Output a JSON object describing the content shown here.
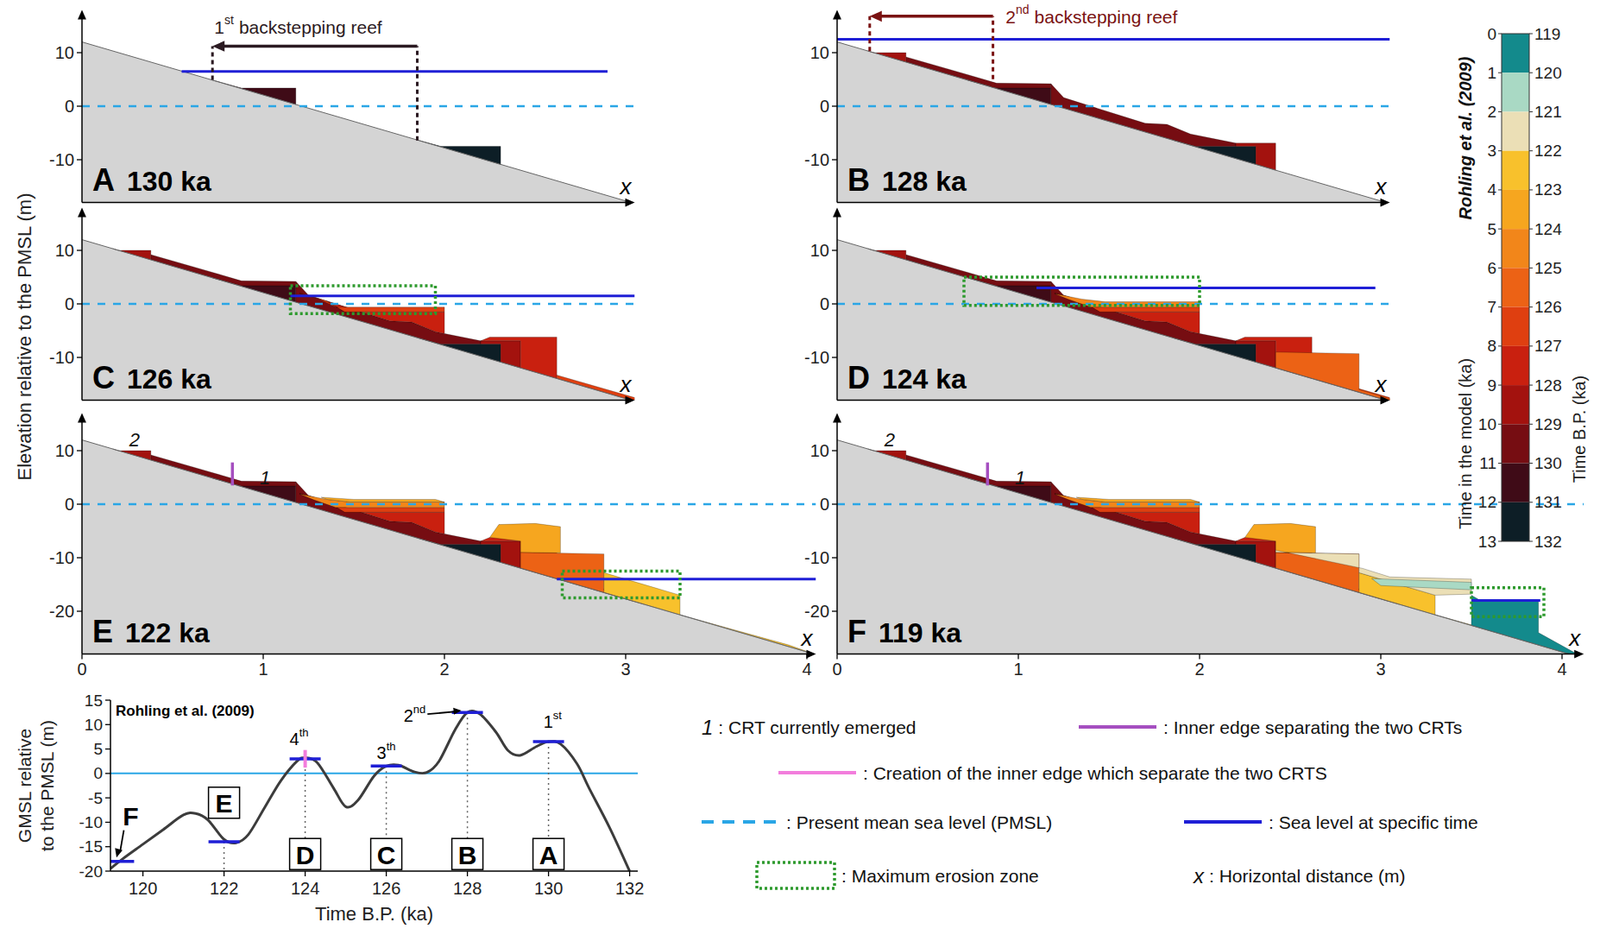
{
  "figure_ylabel": "Elevation relative to the PMSL (m)",
  "chart_data": [
    {
      "type": "section",
      "panel": "A",
      "title": "130 ka",
      "time": 130,
      "xlim": [
        0,
        3.05
      ],
      "ylim": [
        -18,
        18
      ],
      "yticks": [
        -10,
        0,
        10
      ],
      "tick_labels": "y",
      "xlabel": "x",
      "pmsl": 0,
      "bedrock": {
        "x": [
          0,
          3.03
        ],
        "y": [
          12,
          -18
        ]
      },
      "sea_level": {
        "value": 6.5,
        "x": [
          0.55,
          2.9
        ]
      },
      "annotation": {
        "ordinal": "1",
        "suffix": "st",
        "text": "backstepping reef",
        "from_x": 1.85,
        "to_x": 0.72,
        "from_base": -6.4,
        "to_base": 4.9,
        "arrow_y": 11.2,
        "text_x": 0.73,
        "text_y": 14.8,
        "color": "#2b1a22"
      }
    },
    {
      "type": "section",
      "panel": "B",
      "title": "128 ka",
      "time": 128,
      "xlim": [
        0,
        3.05
      ],
      "ylim": [
        -18,
        18
      ],
      "yticks": [
        -10,
        0,
        10
      ],
      "tick_labels": "y",
      "xlabel": "x",
      "pmsl": 0,
      "bedrock": {
        "x": [
          0,
          3.03
        ],
        "y": [
          12,
          -18
        ]
      },
      "sea_level": {
        "value": 12.5,
        "x": [
          0,
          3.05
        ]
      },
      "annotation": {
        "ordinal": "2",
        "suffix": "nd",
        "text": "backstepping reef",
        "from_x": 0.86,
        "to_x": 0.18,
        "from_base": 3.6,
        "to_base": 10.3,
        "arrow_y": 16.8,
        "text_x": 0.93,
        "text_y": 16.8,
        "color": "#7a1212"
      }
    },
    {
      "type": "section",
      "panel": "C",
      "title": "126 ka",
      "time": 126,
      "xlim": [
        0,
        3.05
      ],
      "ylim": [
        -18,
        18
      ],
      "yticks": [
        -10,
        0,
        10
      ],
      "tick_labels": "y",
      "xlabel": "x",
      "pmsl": 0,
      "bedrock": {
        "x": [
          0,
          3.03
        ],
        "y": [
          12,
          -18
        ]
      },
      "sea_level": {
        "value": 1.5,
        "x": [
          1.15,
          3.05
        ]
      },
      "erosion_zone": {
        "x": [
          1.15,
          1.95
        ],
        "y": [
          -1.8,
          3.4
        ]
      }
    },
    {
      "type": "section",
      "panel": "D",
      "title": "124 ka",
      "time": 124,
      "xlim": [
        0,
        3.05
      ],
      "ylim": [
        -18,
        18
      ],
      "yticks": [
        -10,
        0,
        10
      ],
      "tick_labels": "y",
      "xlabel": "x",
      "pmsl": 0,
      "bedrock": {
        "x": [
          0,
          3.03
        ],
        "y": [
          12,
          -18
        ]
      },
      "sea_level": {
        "value": 3,
        "x": [
          1.1,
          2.97
        ]
      },
      "erosion_zone": {
        "x": [
          0.7,
          2.0
        ],
        "y": [
          -0.3,
          5.0
        ]
      }
    },
    {
      "type": "section",
      "panel": "E",
      "title": "122 ka",
      "time": 122,
      "xlim": [
        0,
        4.05
      ],
      "ylim": [
        -28,
        17
      ],
      "yticks": [
        -20,
        -10,
        0,
        10
      ],
      "xticks": [
        0,
        1,
        2,
        3,
        4
      ],
      "xlabel": "x",
      "pmsl": 0,
      "bedrock": {
        "x": [
          0,
          4.04
        ],
        "y": [
          12,
          -28
        ]
      },
      "sea_level": {
        "value": -14,
        "x": [
          2.62,
          4.05
        ]
      },
      "erosion_zone": {
        "x": [
          2.65,
          3.3
        ],
        "y": [
          -17.5,
          -12.5
        ]
      },
      "labels": [
        {
          "text": "2",
          "x": 0.29,
          "y": 12.0
        },
        {
          "text": "1",
          "x": 1.01,
          "y": 5.0
        }
      ],
      "inner_edge": {
        "x": 0.83,
        "y": [
          3.5,
          7.8
        ]
      }
    },
    {
      "type": "section",
      "panel": "F",
      "title": "119 ka",
      "time": 119,
      "xlim": [
        0,
        4.12
      ],
      "ylim": [
        -28,
        17
      ],
      "yticks": [
        -20,
        -10,
        0,
        10
      ],
      "xticks": [
        0,
        1,
        2,
        3,
        4
      ],
      "xlabel": "x",
      "pmsl": 0,
      "bedrock": {
        "x": [
          0,
          4.04
        ],
        "y": [
          12,
          -28
        ]
      },
      "sea_level": {
        "value": -18,
        "x": [
          3.5,
          3.88
        ]
      },
      "erosion_zone": {
        "x": [
          3.5,
          3.9
        ],
        "y": [
          -21,
          -15.6
        ]
      },
      "labels": [
        {
          "text": "2",
          "x": 0.29,
          "y": 12.0
        },
        {
          "text": "1",
          "x": 1.01,
          "y": 5.0
        }
      ],
      "inner_edge": {
        "x": 0.83,
        "y": [
          3.5,
          7.8
        ]
      }
    },
    {
      "type": "line",
      "title": "Rohling et al. (2009)",
      "color": "#3c3c3c",
      "x": [
        119.2,
        119.5,
        120,
        120.5,
        121,
        121.3,
        121.6,
        122,
        122.3,
        122.6,
        123,
        123.4,
        123.8,
        124,
        124.3,
        124.7,
        125,
        125.3,
        125.7,
        126,
        126.3,
        126.7,
        127,
        127.3,
        127.7,
        128,
        128.3,
        128.7,
        129,
        129.3,
        129.7,
        130,
        130.3,
        130.7,
        131,
        131.5,
        132
      ],
      "values": [
        -19.5,
        -17.5,
        -14.5,
        -11.5,
        -8.5,
        -8.2,
        -9.5,
        -13.5,
        -14.2,
        -12.5,
        -7,
        -1.5,
        2.5,
        3.2,
        2.2,
        -3,
        -6.8,
        -5.5,
        -0.5,
        1.5,
        1.7,
        0.3,
        0.2,
        2.5,
        9,
        12.5,
        12.2,
        8.5,
        4.7,
        3.7,
        5.5,
        6.5,
        6,
        2,
        -3,
        -11,
        -20
      ],
      "xlim": [
        119.2,
        132.2
      ],
      "ylim": [
        -20,
        15
      ],
      "xticks": [
        120,
        122,
        124,
        126,
        128,
        130,
        132
      ],
      "yticks": [
        -20,
        -15,
        -10,
        -5,
        0,
        5,
        10,
        15
      ],
      "xlabel": "Time B.P. (ka)",
      "ylabel": [
        "GMSL relative",
        "to the PMSL (m)"
      ],
      "zero_line": 0,
      "events": [
        {
          "label": "A",
          "x": 130,
          "y": 6.5,
          "label_y": -16.5,
          "ordinal": "1",
          "suffix": "st",
          "ordinal_x": 130.1,
          "ordinal_y": 10.6
        },
        {
          "label": "B",
          "x": 128,
          "y": 12.5,
          "label_y": -16.5,
          "ordinal": "2",
          "suffix": "nd",
          "ordinal_x": 126.7,
          "ordinal_y": 11.8,
          "ordinal_arrow_to": [
            127.85,
            12.9
          ]
        },
        {
          "label": "C",
          "x": 126,
          "y": 1.5,
          "label_y": -16.5,
          "ordinal": "3",
          "suffix": "th",
          "ordinal_x": 126,
          "ordinal_y": 4.2
        },
        {
          "label": "D",
          "x": 124,
          "y": 3,
          "label_y": -16.5,
          "ordinal": "4",
          "suffix": "th",
          "ordinal_x": 123.85,
          "ordinal_y": 7.0,
          "inner_edge_y": [
            1.2,
            4.8
          ]
        },
        {
          "label": "E",
          "x": 122,
          "y": -14,
          "label_y": -6
        },
        {
          "label": "F",
          "x": 119.4,
          "y": -18,
          "label_x": 119.7,
          "label_y": -8.8,
          "arrow_to": [
            119.35,
            -17.2
          ]
        }
      ]
    }
  ],
  "deposits": [
    {
      "age": 131,
      "points": [
        [
          1.86,
          -6.41
        ],
        [
          1.98,
          -7.5
        ],
        [
          2.31,
          -7.5
        ],
        [
          2.31,
          -10.87
        ]
      ]
    },
    {
      "age": 130,
      "points": [
        [
          0.72,
          4.87
        ],
        [
          0.88,
          3.4
        ],
        [
          1.18,
          3.4
        ],
        [
          1.18,
          0.32
        ]
      ]
    },
    {
      "age": 129,
      "points": [
        [
          0.38,
          9.2
        ],
        [
          0.72,
          5.9
        ],
        [
          0.88,
          4.3
        ],
        [
          1.18,
          4.2
        ],
        [
          1.18,
          3.4
        ],
        [
          0.88,
          3.4
        ],
        [
          0.72,
          4.87
        ],
        [
          0.38,
          8.24
        ]
      ]
    },
    {
      "age": 129,
      "points": [
        [
          1.18,
          4.2
        ],
        [
          1.25,
          1.6
        ],
        [
          1.7,
          -3.2
        ],
        [
          1.82,
          -3.4
        ],
        [
          1.95,
          -5.2
        ],
        [
          2.2,
          -6.9
        ],
        [
          2.2,
          -7.5
        ],
        [
          1.98,
          -7.5
        ],
        [
          1.86,
          -6.41
        ],
        [
          1.18,
          0.32
        ]
      ]
    },
    {
      "age": 128,
      "points": [
        [
          0.17,
          10.32
        ],
        [
          0.2,
          10.0
        ],
        [
          0.38,
          10.0
        ],
        [
          0.38,
          8.24
        ]
      ]
    },
    {
      "age": 128,
      "points": [
        [
          2.2,
          -7.5
        ],
        [
          2.2,
          -6.9
        ],
        [
          2.42,
          -6.9
        ],
        [
          2.42,
          -11.96
        ],
        [
          2.31,
          -10.87
        ],
        [
          2.31,
          -7.5
        ]
      ]
    },
    {
      "age": 127,
      "points": [
        [
          1.35,
          0.53
        ],
        [
          1.45,
          -1.5
        ],
        [
          2.0,
          -1.5
        ],
        [
          2.0,
          -5.54
        ],
        [
          1.95,
          -5.2
        ],
        [
          1.82,
          -3.4
        ],
        [
          1.7,
          -3.2
        ]
      ]
    },
    {
      "age": 127,
      "points": [
        [
          2.2,
          -6.9
        ],
        [
          2.25,
          -6.2
        ],
        [
          2.62,
          -6.2
        ],
        [
          2.62,
          -13.94
        ],
        [
          2.42,
          -11.96
        ],
        [
          2.42,
          -6.9
        ]
      ]
    },
    {
      "age": 126,
      "points": [
        [
          1.2,
          2.0
        ],
        [
          1.3,
          1.0
        ],
        [
          1.4,
          -0.6
        ],
        [
          2.0,
          -0.6
        ],
        [
          2.0,
          -1.5
        ],
        [
          1.45,
          -1.5
        ],
        [
          1.35,
          0.53
        ],
        [
          1.25,
          1.6
        ]
      ]
    },
    {
      "age": 126,
      "points": [
        [
          2.62,
          -13.3
        ],
        [
          3.05,
          -17.5
        ],
        [
          3.05,
          -18.2
        ],
        [
          2.62,
          -13.94
        ]
      ]
    },
    {
      "age": 125,
      "points": [
        [
          2.42,
          -9.0
        ],
        [
          2.88,
          -9.3
        ],
        [
          2.88,
          -16.0
        ],
        [
          3.1,
          -18.2
        ],
        [
          3.1,
          -18.69
        ],
        [
          2.62,
          -13.94
        ],
        [
          2.42,
          -11.96
        ]
      ]
    },
    {
      "age": 124,
      "points": [
        [
          1.2,
          1.9
        ],
        [
          1.35,
          0.9
        ],
        [
          1.48,
          0.4
        ],
        [
          2.0,
          0.4
        ],
        [
          2.0,
          -0.6
        ],
        [
          1.4,
          -0.6
        ],
        [
          1.28,
          0.8
        ]
      ]
    },
    {
      "age": 123,
      "points": [
        [
          1.32,
          1.3
        ],
        [
          1.5,
          0.9
        ],
        [
          1.95,
          0.9
        ],
        [
          2.0,
          0.4
        ],
        [
          1.48,
          0.4
        ],
        [
          1.35,
          0.9
        ]
      ]
    },
    {
      "age": 123,
      "points": [
        [
          2.25,
          -6.2
        ],
        [
          2.3,
          -3.8
        ],
        [
          2.5,
          -3.6
        ],
        [
          2.64,
          -4.2
        ],
        [
          2.64,
          -9.1
        ],
        [
          2.42,
          -9.0
        ],
        [
          2.42,
          -6.9
        ]
      ]
    },
    {
      "age": 122,
      "points": [
        [
          2.88,
          -12.8
        ],
        [
          3.3,
          -17.0
        ],
        [
          3.3,
          -20.67
        ],
        [
          3.9,
          -26.3
        ],
        [
          4.04,
          -28.0
        ],
        [
          3.1,
          -18.69
        ],
        [
          2.88,
          -16.5
        ]
      ]
    },
    {
      "age": 121,
      "points": [
        [
          2.42,
          -8.6
        ],
        [
          2.9,
          -12.0
        ],
        [
          3.05,
          -13.6
        ],
        [
          3.5,
          -14.0
        ],
        [
          3.5,
          -16.8
        ],
        [
          3.3,
          -17.0
        ],
        [
          2.88,
          -12.8
        ],
        [
          2.88,
          -9.3
        ],
        [
          2.42,
          -9.0
        ]
      ]
    },
    {
      "age": 120,
      "points": [
        [
          2.95,
          -13.9
        ],
        [
          3.5,
          -14.6
        ],
        [
          3.5,
          -16.0
        ],
        [
          3.0,
          -15.2
        ]
      ]
    },
    {
      "age": 119,
      "points": [
        [
          3.5,
          -17.0
        ],
        [
          3.55,
          -18.0
        ],
        [
          3.87,
          -18.0
        ],
        [
          3.87,
          -24.0
        ],
        [
          4.1,
          -28.3
        ],
        [
          4.04,
          -28.0
        ],
        [
          3.5,
          -22.65
        ]
      ]
    }
  ],
  "colorbar": {
    "title": "Rohling et al. (2009)",
    "left_label": "Time in the model (ka)",
    "right_label": "Time B.P. (ka)",
    "left_ticks": [
      0,
      1,
      2,
      3,
      4,
      5,
      6,
      7,
      8,
      9,
      10,
      11,
      12,
      13
    ],
    "right_ticks": [
      119,
      120,
      121,
      122,
      123,
      124,
      125,
      126,
      127,
      128,
      129,
      130,
      131,
      132
    ],
    "colors": [
      "#138a8c",
      "#a9d9c4",
      "#ebdfb6",
      "#f8c12c",
      "#f6a61f",
      "#f2861a",
      "#ec6215",
      "#df3f10",
      "#c9200f",
      "#a3120e",
      "#760d12",
      "#3f0b17",
      "#0d1e26"
    ]
  },
  "legend_items": [
    {
      "symbol": "1",
      "label": ": CRT currently emerged"
    },
    {
      "line_style": "solid",
      "color": "#a54fc0",
      "label": ": Inner edge separating the two CRTs"
    },
    {
      "line_style": "solid",
      "color": "#f27ddc",
      "label": ": Creation of the inner edge which separate the two CRTS"
    },
    {
      "line_style": "dashed",
      "color": "#2aa6e6",
      "label": ": Present mean sea level (PMSL)"
    },
    {
      "line_style": "solid",
      "color": "#1f1fd6",
      "label": ": Sea level at specific time"
    },
    {
      "line_style": "box",
      "color": "#2e9a2e",
      "label": ": Maximum erosion zone"
    },
    {
      "symbol": "x",
      "label": ": Horizontal distance (m)"
    }
  ]
}
